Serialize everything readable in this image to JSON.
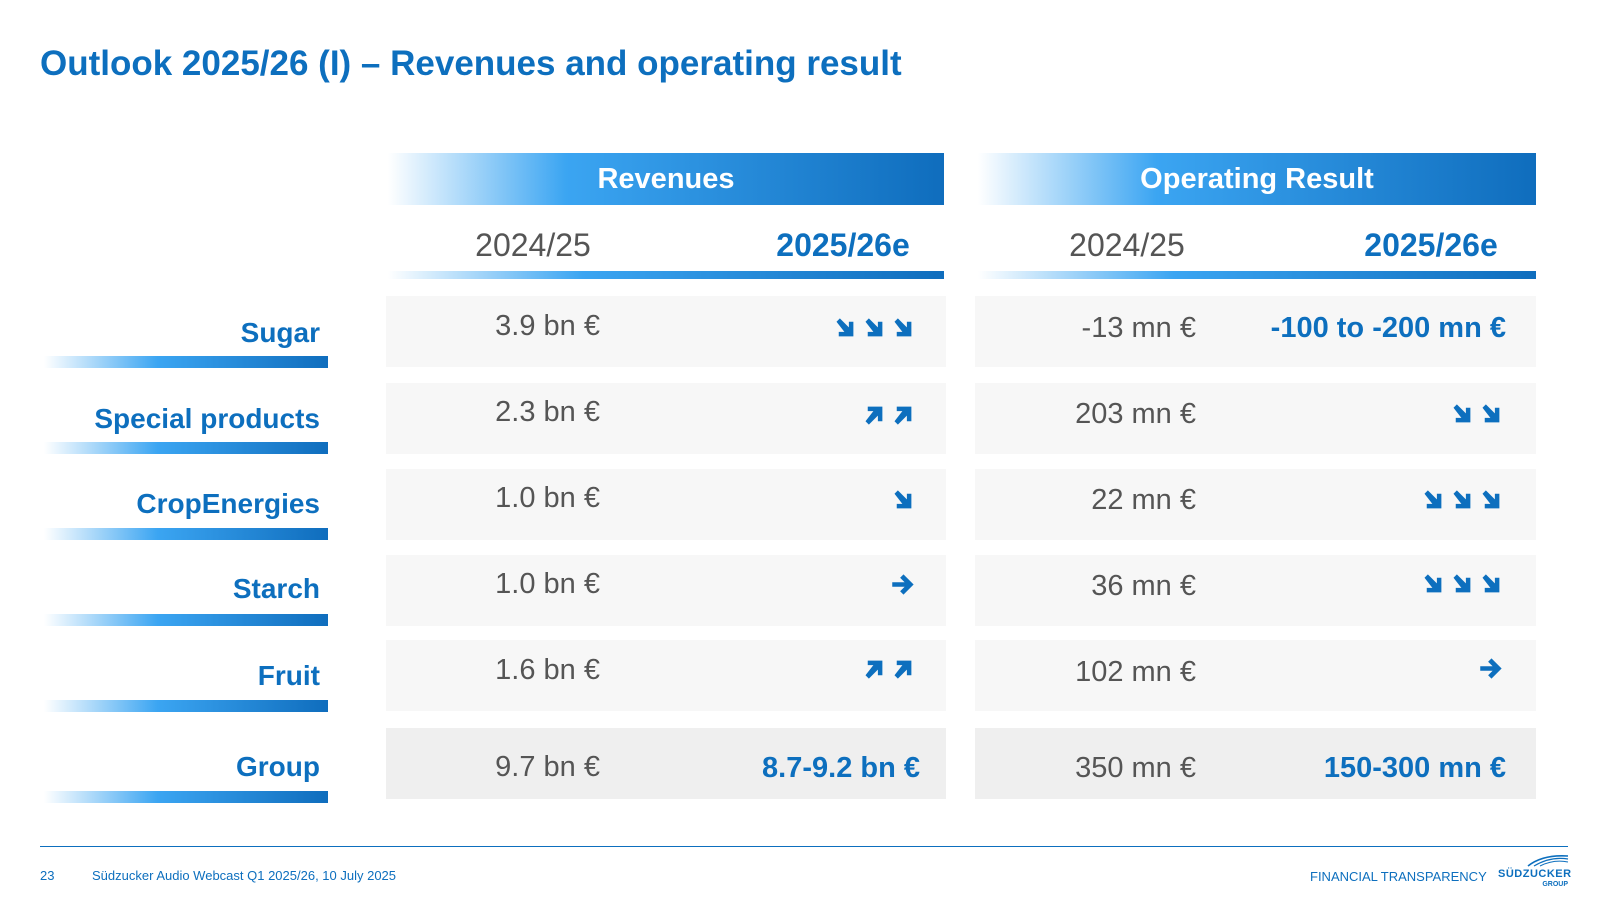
{
  "title": "Outlook 2025/26 (I) – Revenues and operating result",
  "headers": {
    "revenues": "Revenues",
    "operating_result": "Operating Result",
    "prev_year": "2024/25",
    "forecast_year": "2025/26e"
  },
  "rows": [
    {
      "label": "Sugar",
      "rev_prev": "3.9 bn €",
      "rev_fc_arrows": [
        "down",
        "down",
        "down"
      ],
      "op_prev": "-13 mn €",
      "op_fc_text": "-100 to -200 mn €"
    },
    {
      "label": "Special products",
      "rev_prev": "2.3 bn €",
      "rev_fc_arrows": [
        "up",
        "up"
      ],
      "op_prev": "203 mn €",
      "op_fc_arrows": [
        "down",
        "down"
      ]
    },
    {
      "label": "CropEnergies",
      "rev_prev": "1.0 bn €",
      "rev_fc_arrows": [
        "down"
      ],
      "op_prev": "22 mn €",
      "op_fc_arrows": [
        "down",
        "down",
        "down"
      ]
    },
    {
      "label": "Starch",
      "rev_prev": "1.0 bn €",
      "rev_fc_arrows": [
        "right"
      ],
      "op_prev": "36 mn €",
      "op_fc_arrows": [
        "down",
        "down",
        "down"
      ]
    },
    {
      "label": "Fruit",
      "rev_prev": "1.6 bn €",
      "rev_fc_arrows": [
        "up",
        "up"
      ],
      "op_prev": "102 mn €",
      "op_fc_arrows": [
        "right"
      ]
    }
  ],
  "group": {
    "label": "Group",
    "rev_prev": "9.7 bn €",
    "rev_fc_text": "8.7-9.2 bn €",
    "op_prev": "350 mn €",
    "op_fc_text": "150-300 mn €"
  },
  "footer": {
    "page_number": "23",
    "event": "Südzucker Audio Webcast Q1 2025/26, 10 July 2025",
    "section": "FINANCIAL TRANSPARENCY",
    "logo_text": "SÜDZUCKER",
    "logo_sub": "GROUP"
  },
  "colors": {
    "accent": "#0d6fbe",
    "accent_light": "#3ba5f2",
    "text": "#555555",
    "cell": "#f7f7f7"
  }
}
